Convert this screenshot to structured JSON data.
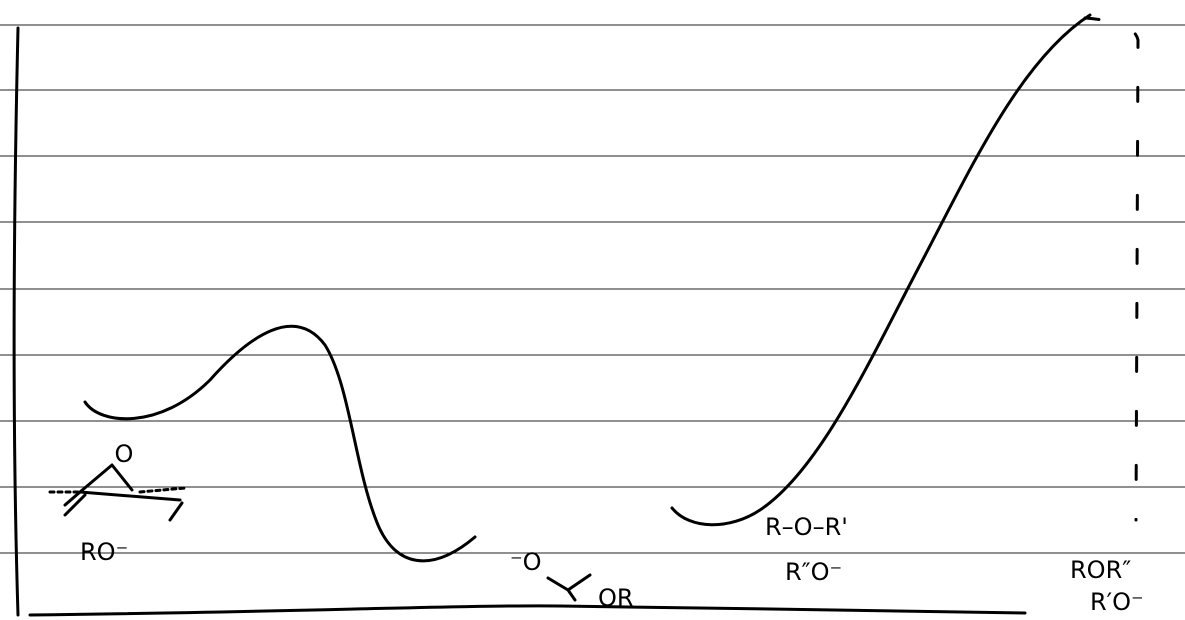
{
  "labels": {
    "epoxide_oxygen": "O",
    "reactant_base": "RO⁻",
    "intermediate_alkoxide": "⁻O",
    "intermediate_ether": "OR",
    "product_ether": "R–O–R'",
    "product_base": "R″O⁻",
    "final_ether": "ROR″",
    "final_base": "R′O⁻"
  }
}
